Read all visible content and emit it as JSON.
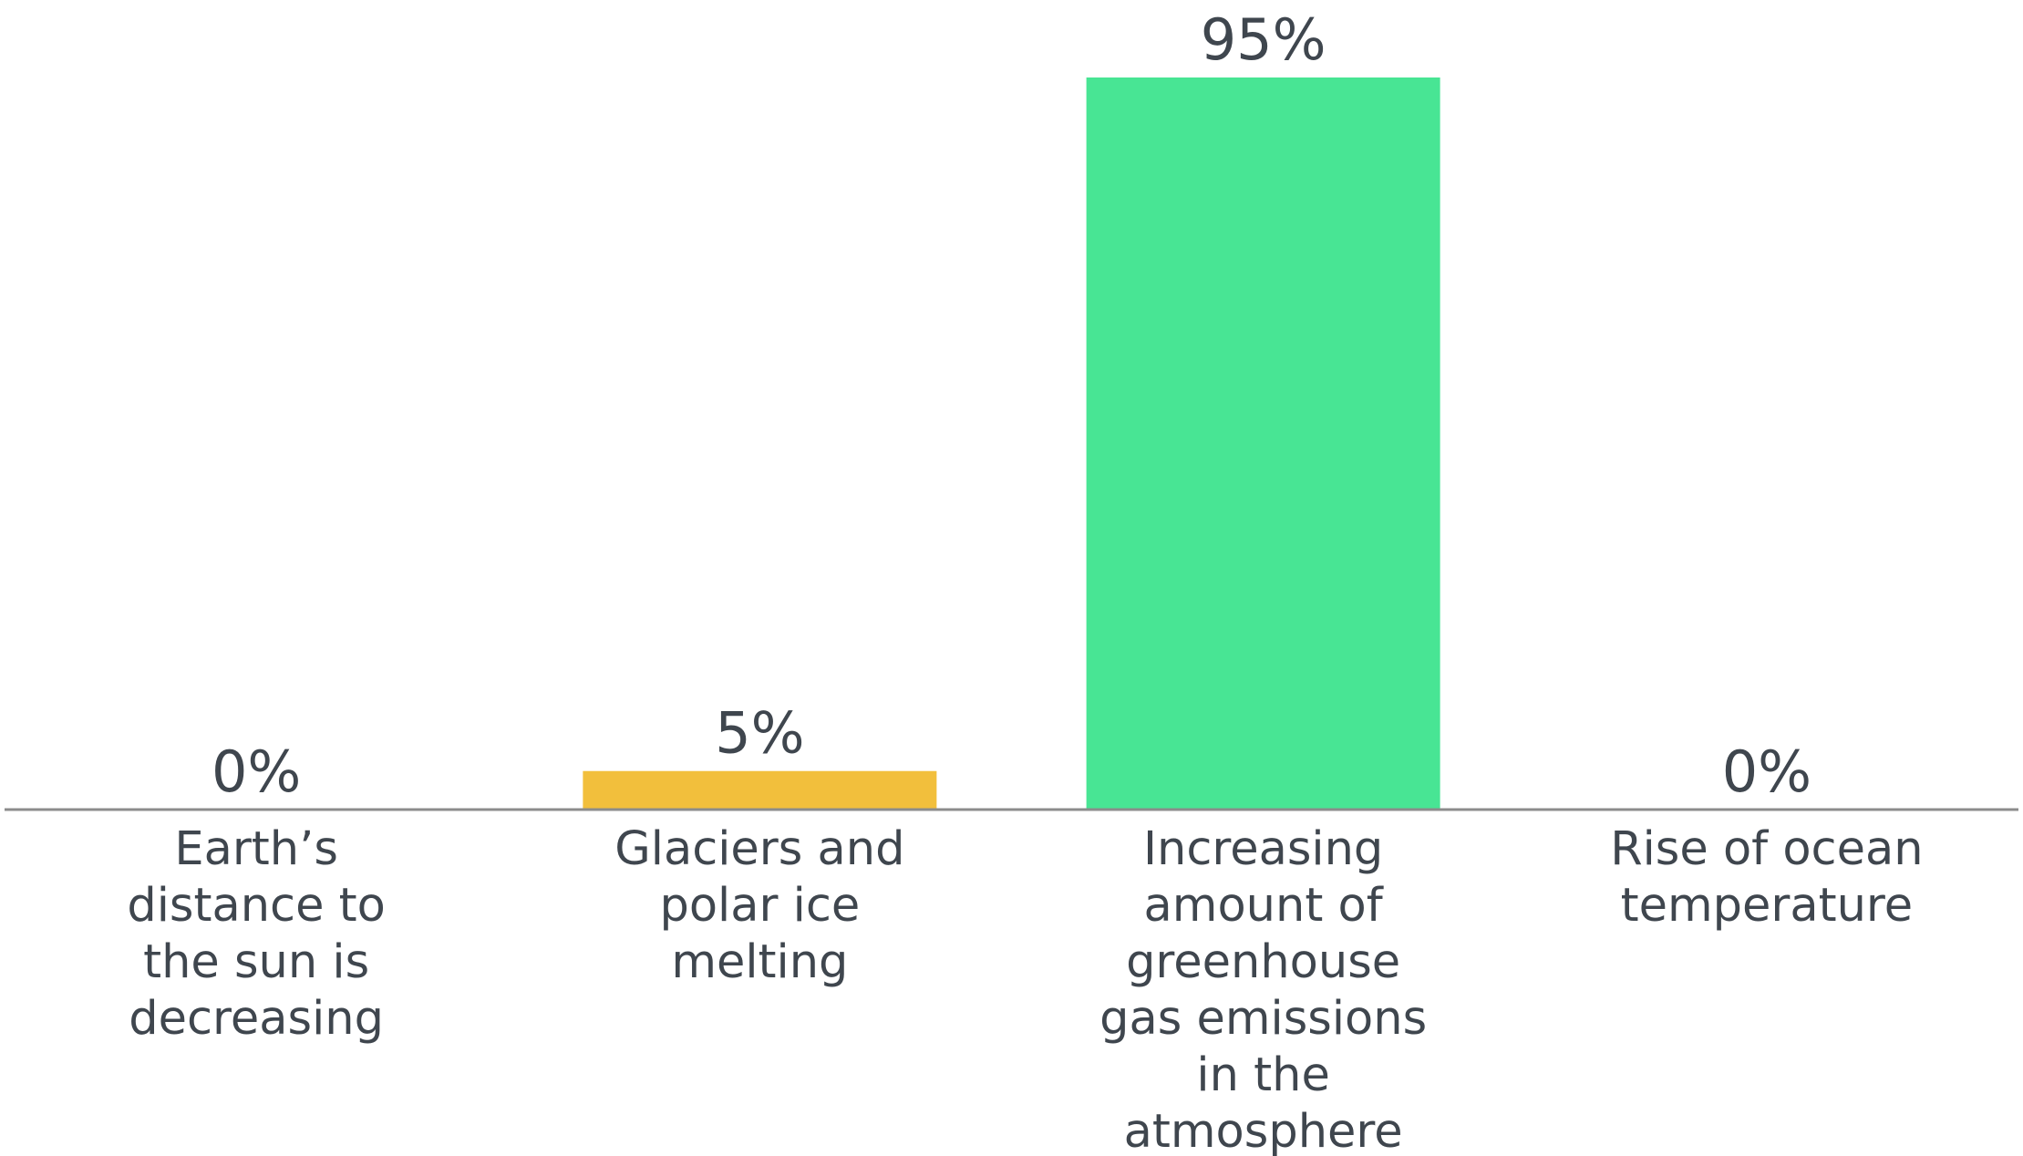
{
  "chart_data": {
    "type": "bar",
    "categories": [
      [
        "Earth’s",
        "distance to",
        "the sun is",
        "decreasing"
      ],
      [
        "Glaciers and",
        "polar ice",
        "melting"
      ],
      [
        "Increasing",
        "amount of",
        "greenhouse",
        "gas emissions",
        "in the",
        "atmosphere"
      ],
      [
        "Rise of ocean",
        "temperature"
      ]
    ],
    "values": [
      0,
      5,
      95,
      0
    ],
    "value_labels": [
      "0%",
      "5%",
      "95%",
      "0%"
    ],
    "colors": [
      "#f2bf3c",
      "#f2bf3c",
      "#48e594",
      "#48e594"
    ],
    "ylim": [
      0,
      100
    ],
    "grid": false,
    "title": "",
    "xlabel": "",
    "ylabel": ""
  }
}
